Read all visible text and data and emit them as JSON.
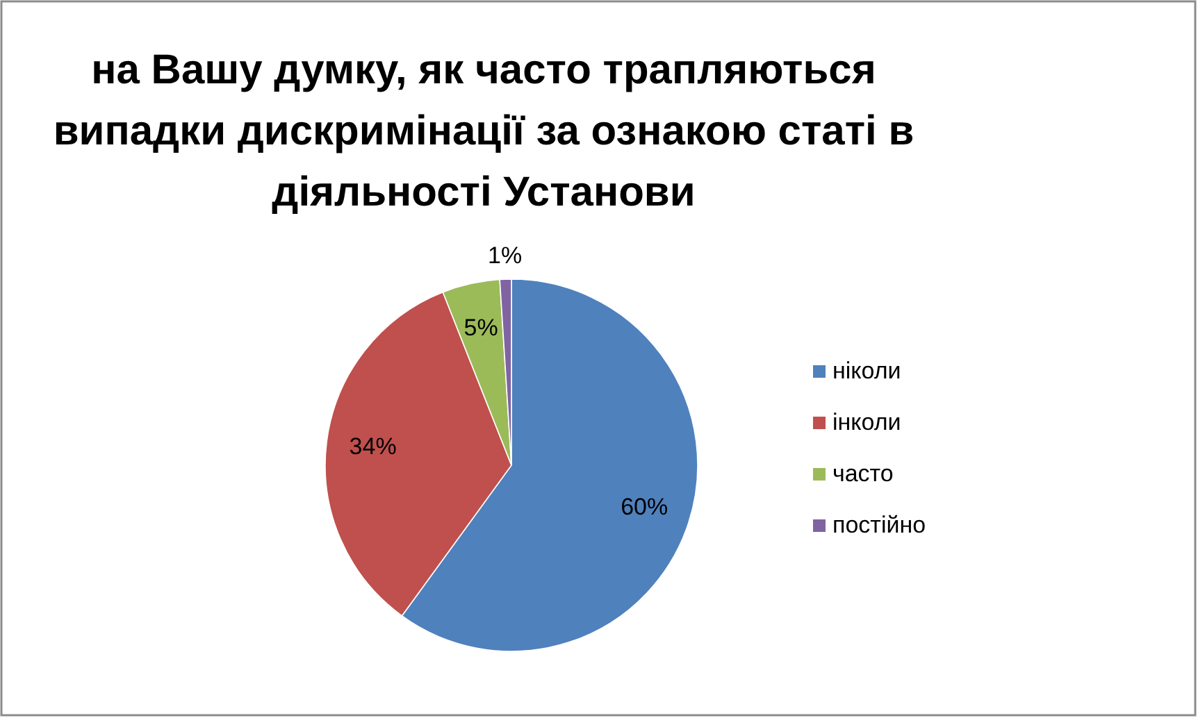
{
  "chart_data": {
    "type": "pie",
    "title": "на Вашу думку, як часто трапляються випадки дискримінації за ознакою статі в діяльності Установи",
    "categories": [
      "ніколи",
      "інколи",
      "часто",
      "постійно"
    ],
    "values": [
      60,
      34,
      5,
      1
    ],
    "colors": [
      "#4f81bd",
      "#c0504d",
      "#9bbb59",
      "#8064a2"
    ],
    "value_labels": [
      "60%",
      "34%",
      "5%",
      "1%"
    ],
    "legend": "right"
  }
}
